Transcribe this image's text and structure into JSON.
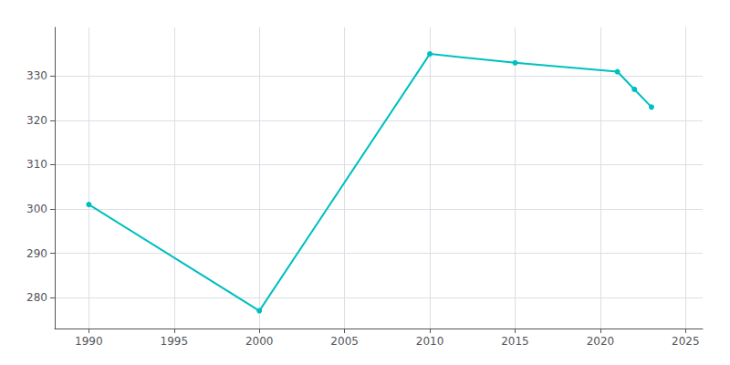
{
  "chart_data": {
    "type": "line",
    "x": [
      1990,
      2000,
      2010,
      2015,
      2021,
      2022,
      2023
    ],
    "values": [
      301,
      277,
      335,
      333,
      331,
      327,
      323
    ],
    "color": "#00BFBF",
    "marker": "circle",
    "xlim": [
      1988,
      2026
    ],
    "xticks": [
      1990,
      1995,
      2000,
      2005,
      2010,
      2015,
      2020,
      2025
    ],
    "ylim": [
      273,
      341
    ],
    "yticks": [
      280,
      290,
      300,
      310,
      320,
      330
    ],
    "grid": true
  }
}
